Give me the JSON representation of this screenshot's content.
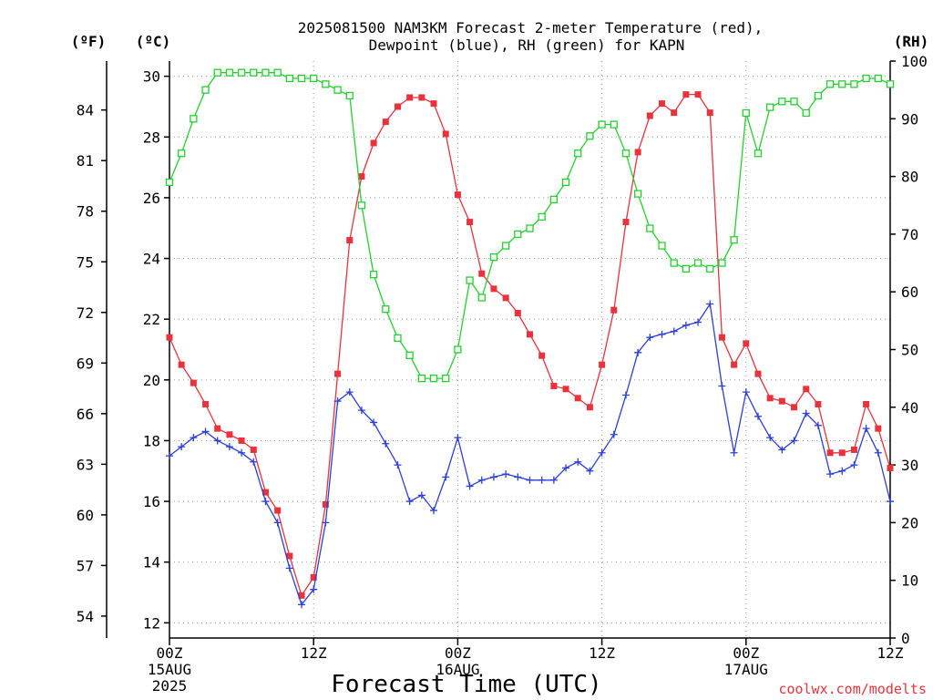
{
  "title_line1": "2025081500 NAM3KM Forecast 2-meter Temperature (red),",
  "title_line2": "Dewpoint (blue), RH (green) for KAPN",
  "credit": "coolwx.com/modelts",
  "chart_data": {
    "type": "line",
    "xlabel": "Forecast Time (UTC)",
    "x_ticks": [
      {
        "hour": 0,
        "label": "00Z",
        "sub1": "15AUG",
        "sub2": "2025"
      },
      {
        "hour": 12,
        "label": "12Z",
        "sub1": "",
        "sub2": ""
      },
      {
        "hour": 24,
        "label": "00Z",
        "sub1": "16AUG",
        "sub2": ""
      },
      {
        "hour": 36,
        "label": "12Z",
        "sub1": "",
        "sub2": ""
      },
      {
        "hour": 48,
        "label": "00Z",
        "sub1": "17AUG",
        "sub2": ""
      },
      {
        "hour": 60,
        "label": "12Z",
        "sub1": "",
        "sub2": ""
      }
    ],
    "xlim": [
      0,
      60
    ],
    "y_left_c": {
      "unit": "(ºC)",
      "ylim": [
        11.5,
        30.5
      ],
      "ticks": [
        12,
        14,
        16,
        18,
        20,
        22,
        24,
        26,
        28,
        30
      ]
    },
    "y_left_f": {
      "unit": "(ºF)",
      "ticks": [
        54,
        57,
        60,
        63,
        66,
        69,
        72,
        75,
        78,
        81,
        84
      ]
    },
    "y_right_rh": {
      "unit": "(RH)",
      "ylim": [
        0,
        100
      ],
      "ticks": [
        0,
        10,
        20,
        30,
        40,
        50,
        60,
        70,
        80,
        90,
        100
      ]
    },
    "grid": true,
    "series": [
      {
        "color": "#e8323c",
        "marker": "filled-square",
        "axis": "celsius",
        "x": [
          0,
          1,
          2,
          3,
          4,
          5,
          6,
          7,
          8,
          9,
          10,
          11,
          12,
          13,
          14,
          15,
          16,
          17,
          18,
          19,
          20,
          21,
          22,
          23,
          24,
          25,
          26,
          27,
          28,
          29,
          30,
          31,
          32,
          33,
          34,
          35,
          36,
          37,
          38,
          39,
          40,
          41,
          42,
          43,
          44,
          45,
          46,
          47,
          48,
          49,
          50,
          51,
          52,
          53,
          54,
          55,
          56,
          57,
          58,
          59,
          60
        ],
        "values": [
          21.4,
          20.5,
          19.9,
          19.2,
          18.4,
          18.2,
          18.0,
          17.7,
          16.3,
          15.7,
          14.2,
          12.9,
          13.5,
          15.9,
          20.2,
          24.6,
          26.7,
          27.8,
          28.5,
          29.0,
          29.3,
          29.3,
          29.1,
          28.1,
          26.1,
          25.2,
          23.5,
          23.0,
          22.7,
          22.2,
          21.5,
          20.8,
          19.8,
          19.7,
          19.4,
          19.1,
          20.5,
          22.3,
          25.2,
          27.5,
          28.7,
          29.1,
          28.8,
          29.4,
          29.4,
          28.8,
          21.4,
          20.5,
          21.2,
          20.2,
          19.4,
          19.3,
          19.1,
          19.7,
          19.2,
          17.6,
          17.6,
          17.7,
          19.2,
          18.4,
          17.1
        ]
      },
      {
        "color": "#2a3fd6",
        "marker": "plus",
        "axis": "celsius",
        "x": [
          0,
          1,
          2,
          3,
          4,
          5,
          6,
          7,
          8,
          9,
          10,
          11,
          12,
          13,
          14,
          15,
          16,
          17,
          18,
          19,
          20,
          21,
          22,
          23,
          24,
          25,
          26,
          27,
          28,
          29,
          30,
          31,
          32,
          33,
          34,
          35,
          36,
          37,
          38,
          39,
          40,
          41,
          42,
          43,
          44,
          45,
          46,
          47,
          48,
          49,
          50,
          51,
          52,
          53,
          54,
          55,
          56,
          57,
          58,
          59,
          60
        ],
        "values": [
          17.5,
          17.8,
          18.1,
          18.3,
          18.0,
          17.8,
          17.6,
          17.3,
          16.0,
          15.3,
          13.8,
          12.6,
          13.1,
          15.3,
          19.3,
          19.6,
          19.0,
          18.6,
          17.9,
          17.2,
          16.0,
          16.2,
          15.7,
          16.8,
          18.1,
          16.5,
          16.7,
          16.8,
          16.9,
          16.8,
          16.7,
          16.7,
          16.7,
          17.1,
          17.3,
          17.0,
          17.6,
          18.2,
          19.5,
          20.9,
          21.4,
          21.5,
          21.6,
          21.8,
          21.9,
          22.5,
          19.8,
          17.6,
          19.6,
          18.8,
          18.1,
          17.7,
          18.0,
          18.9,
          18.5,
          16.9,
          17.0,
          17.2,
          18.4,
          17.6,
          16.0
        ]
      },
      {
        "color": "#22d12f",
        "marker": "open-square",
        "axis": "rh",
        "x": [
          0,
          1,
          2,
          3,
          4,
          5,
          6,
          7,
          8,
          9,
          10,
          11,
          12,
          13,
          14,
          15,
          16,
          17,
          18,
          19,
          20,
          21,
          22,
          23,
          24,
          25,
          26,
          27,
          28,
          29,
          30,
          31,
          32,
          33,
          34,
          35,
          36,
          37,
          38,
          39,
          40,
          41,
          42,
          43,
          44,
          45,
          46,
          47,
          48,
          49,
          50,
          51,
          52,
          53,
          54,
          55,
          56,
          57,
          58,
          59,
          60
        ],
        "values": [
          79,
          84,
          90,
          95,
          98,
          98,
          98,
          98,
          98,
          98,
          97,
          97,
          97,
          96,
          95,
          94,
          75,
          63,
          57,
          52,
          49,
          45,
          45,
          45,
          50,
          62,
          59,
          66,
          68,
          70,
          71,
          73,
          76,
          79,
          84,
          87,
          89,
          89,
          84,
          77,
          71,
          68,
          65,
          64,
          65,
          64,
          65,
          69,
          91,
          84,
          92,
          93,
          93,
          91,
          94,
          96,
          96,
          96,
          97,
          97,
          96
        ]
      }
    ]
  }
}
